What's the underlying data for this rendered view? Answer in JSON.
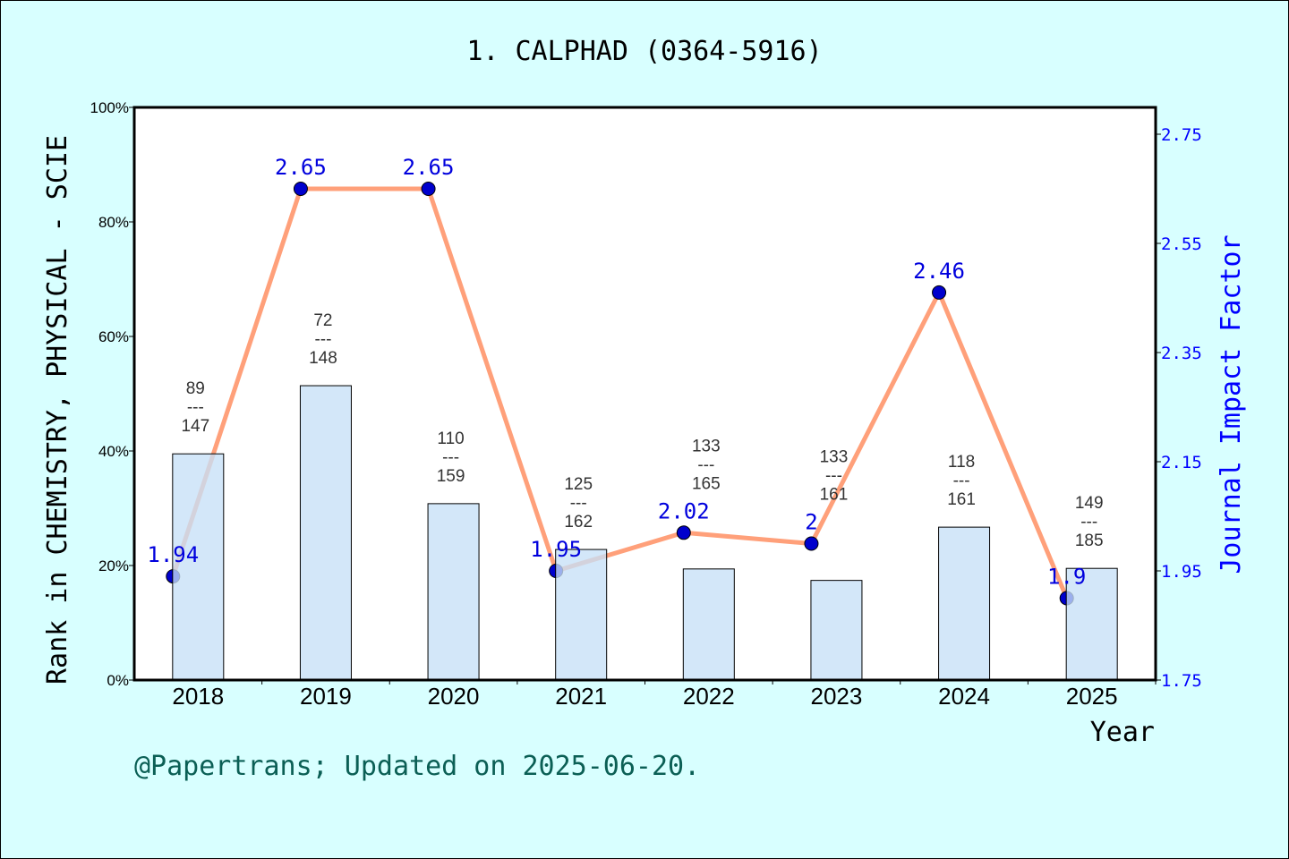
{
  "chart_data": {
    "type": "bar+line",
    "title": "1. CALPHAD (0364-5916)",
    "xlabel": "Year",
    "ylabel": "Rank in CHEMISTRY, PHYSICAL - SCIE",
    "y2label": "Journal Impact Factor",
    "footer": "@Papertrans; Updated on 2025-06-20.",
    "categories": [
      "2018",
      "2019",
      "2020",
      "2021",
      "2022",
      "2023",
      "2024",
      "2025"
    ],
    "ylim": [
      0,
      100
    ],
    "yticks": [
      "0%",
      "20%",
      "40%",
      "60%",
      "80%",
      "100%"
    ],
    "y2lim": [
      1.75,
      2.75
    ],
    "y2ticks": [
      "1.75",
      "1.95",
      "2.15",
      "2.35",
      "2.55",
      "2.75"
    ],
    "bars": {
      "values_percent": [
        39.5,
        51.4,
        30.8,
        22.8,
        19.4,
        17.4,
        26.7,
        19.5
      ],
      "rank": [
        "89",
        "72",
        "110",
        "125",
        "133",
        "133",
        "118",
        "149"
      ],
      "total": [
        "147",
        "148",
        "159",
        "162",
        "165",
        "161",
        "161",
        "185"
      ],
      "separator": "---",
      "color": "#c6e0f7"
    },
    "line": {
      "values": [
        1.94,
        2.65,
        2.65,
        1.95,
        2.02,
        2.0,
        2.46,
        1.9
      ],
      "labels": [
        "1.94",
        "2.65",
        "2.65",
        "1.95",
        "2.02",
        "2",
        "2.46",
        "1.9"
      ],
      "color": "#ffa07a",
      "marker_color": "#0000cd"
    },
    "grid": false,
    "legend": "none"
  }
}
